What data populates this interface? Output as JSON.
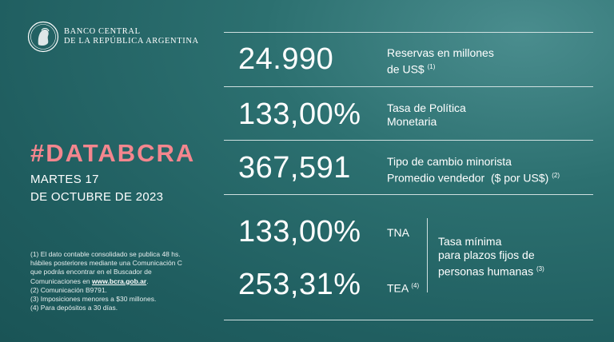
{
  "brand": {
    "line1": "BANCO CENTRAL",
    "line2": "DE LA REPÚBLICA ARGENTINA",
    "seal_icon": "bcra-seal-icon"
  },
  "title": "#DATABCRA",
  "date": {
    "line1": "MARTES 17",
    "line2": "DE OCTUBRE DE 2023"
  },
  "metrics": {
    "reserves": {
      "value": "24.990",
      "label_line1": "Reservas en millones",
      "label_line2": "de US$",
      "note": "(1)"
    },
    "policy_rate": {
      "value": "133,00%",
      "label_line1": "Tasa de Política",
      "label_line2": "Monetaria"
    },
    "exchange_rate": {
      "value": "367,591",
      "label_line1": "Tipo de cambio minorista",
      "label_line2": "Promedio vendedor  ($ por US$)",
      "note": "(2)"
    },
    "tna": {
      "value": "133,00%",
      "label": "TNA"
    },
    "tea": {
      "value": "253,31%",
      "label": "TEA",
      "note": "(4)"
    },
    "fixed_term": {
      "line1": "Tasa mínima",
      "line2": "para plazos fijos de",
      "line3": "personas humanas",
      "note": "(3)"
    }
  },
  "notes": {
    "n1_a": "(1) El dato contable consolidado se publica 48 hs.",
    "n1_b": "hábiles posteriores mediante una Comunicación C",
    "n1_c": "que podrás encontrar en el Buscador de",
    "n1_d": "Comunicaciones en",
    "n1_link": "www.bcra.gob.ar",
    "n1_end": ".",
    "n2": "(2) Comunicación B9791.",
    "n3": "(3) Imposiciones menores a $30 millones.",
    "n4": "(4) Para depósitos a 30 días."
  },
  "colors": {
    "background": "#2c7070",
    "accent": "#f4868e",
    "text": "#ffffff"
  }
}
